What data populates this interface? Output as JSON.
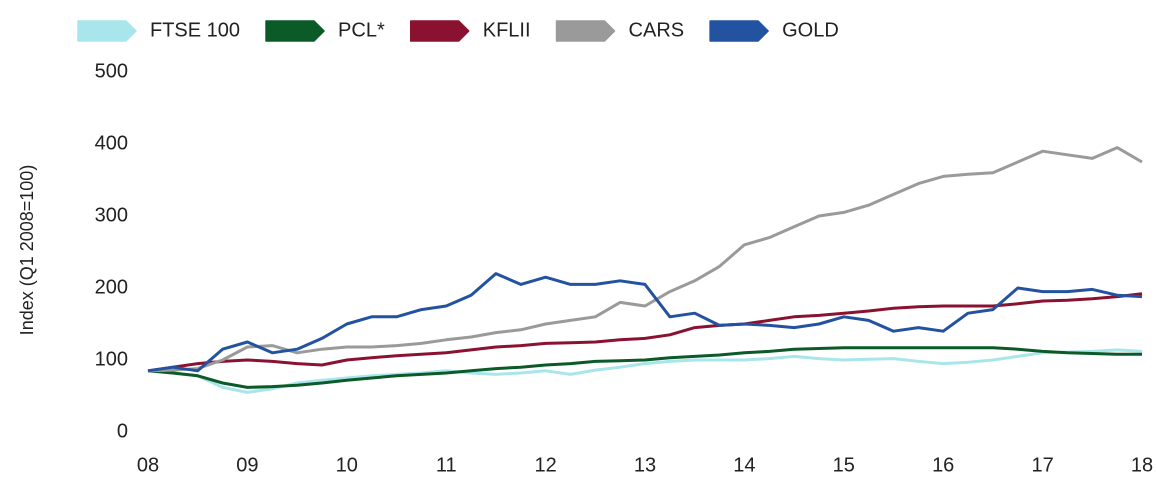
{
  "chart_data": {
    "type": "line",
    "y_label": "Index (Q1 2008=100)",
    "x": [
      8,
      8.25,
      8.5,
      8.75,
      9,
      9.25,
      9.5,
      9.75,
      10,
      10.25,
      10.5,
      10.75,
      11,
      11.25,
      11.5,
      11.75,
      12,
      12.25,
      12.5,
      12.75,
      13,
      13.25,
      13.5,
      13.75,
      14,
      14.25,
      14.5,
      14.75,
      15,
      15.25,
      15.5,
      15.75,
      16,
      16.25,
      16.5,
      16.75,
      17,
      17.25,
      17.5,
      17.75,
      18
    ],
    "xlim": [
      8,
      18
    ],
    "xticks": [
      {
        "value": 8,
        "label": "08"
      },
      {
        "value": 9,
        "label": "09"
      },
      {
        "value": 10,
        "label": "10"
      },
      {
        "value": 11,
        "label": "11"
      },
      {
        "value": 12,
        "label": "12"
      },
      {
        "value": 13,
        "label": "13"
      },
      {
        "value": 14,
        "label": "14"
      },
      {
        "value": 15,
        "label": "15"
      },
      {
        "value": 16,
        "label": "16"
      },
      {
        "value": 17,
        "label": "17"
      },
      {
        "value": 18,
        "label": "18"
      }
    ],
    "ylim": [
      0,
      500
    ],
    "yticks": [
      0,
      100,
      200,
      300,
      400,
      500
    ],
    "grid": false,
    "legend": "top",
    "series": [
      {
        "name": "FTSE 100",
        "color": "#a8e6ec",
        "values": [
          85,
          82,
          78,
          62,
          55,
          60,
          68,
          72,
          75,
          78,
          80,
          82,
          85,
          82,
          80,
          82,
          85,
          80,
          86,
          90,
          95,
          98,
          100,
          100,
          100,
          102,
          105,
          102,
          100,
          101,
          102,
          98,
          95,
          97,
          100,
          105,
          110,
          111,
          112,
          114,
          112
        ]
      },
      {
        "name": "PCL*",
        "color": "#0b5a28",
        "values": [
          85,
          82,
          78,
          68,
          62,
          63,
          65,
          68,
          72,
          75,
          78,
          80,
          82,
          85,
          88,
          90,
          93,
          95,
          98,
          99,
          100,
          103,
          105,
          107,
          110,
          112,
          115,
          116,
          117,
          117,
          117,
          117,
          117,
          117,
          117,
          115,
          112,
          110,
          109,
          108,
          108
        ]
      },
      {
        "name": "KFLII",
        "color": "#8a1230",
        "values": [
          85,
          90,
          95,
          98,
          100,
          98,
          95,
          93,
          100,
          103,
          106,
          108,
          110,
          114,
          118,
          120,
          123,
          124,
          125,
          128,
          130,
          135,
          145,
          148,
          150,
          155,
          160,
          162,
          165,
          168,
          172,
          174,
          175,
          175,
          175,
          178,
          182,
          183,
          185,
          188,
          192
        ]
      },
      {
        "name": "CARS",
        "color": "#9a9a9a",
        "values": [
          85,
          86,
          88,
          100,
          118,
          120,
          110,
          115,
          118,
          118,
          120,
          123,
          128,
          132,
          138,
          142,
          150,
          155,
          160,
          180,
          175,
          195,
          210,
          230,
          260,
          270,
          285,
          300,
          305,
          315,
          330,
          345,
          355,
          358,
          360,
          375,
          390,
          385,
          380,
          395,
          375
        ]
      },
      {
        "name": "GOLD",
        "color": "#2352a0",
        "values": [
          85,
          90,
          85,
          115,
          125,
          110,
          115,
          130,
          150,
          160,
          160,
          170,
          175,
          190,
          220,
          205,
          215,
          205,
          205,
          210,
          205,
          160,
          165,
          148,
          150,
          148,
          145,
          150,
          160,
          155,
          140,
          145,
          140,
          165,
          170,
          200,
          195,
          195,
          198,
          190,
          188
        ]
      }
    ]
  }
}
